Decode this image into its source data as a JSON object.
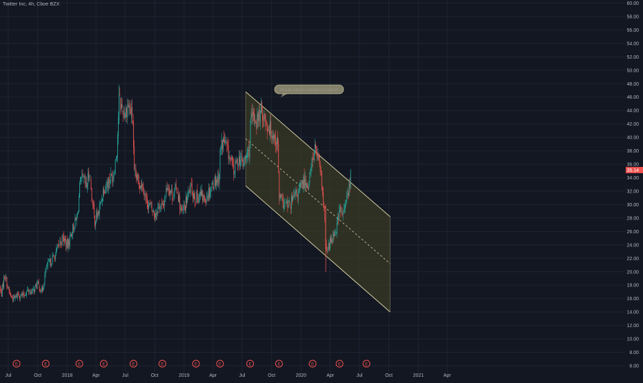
{
  "header": {
    "symbol_line": "Twitter Inc, 4h, Cboe BZX"
  },
  "annotation": {
    "text": "Break above parallel channel"
  },
  "colors": {
    "background": "#131722",
    "grid": "#1f2433",
    "text": "#b2b5be",
    "up": "#26a69a",
    "down": "#ef5350",
    "channel_fill": "#3a3a26",
    "channel_line": "#d8d3a2",
    "price_tag": "#ef5350",
    "earnings_marker": "#ef5350"
  },
  "chart_data": {
    "type": "candlestick",
    "title": "Twitter Inc, 4h, Cboe BZX",
    "y_ticks": [
      "60.00",
      "58.00",
      "56.00",
      "54.00",
      "52.00",
      "50.00",
      "48.00",
      "46.00",
      "44.00",
      "42.00",
      "40.00",
      "38.00",
      "36.00",
      "34.00",
      "32.00",
      "30.00",
      "28.00",
      "26.00",
      "24.00",
      "22.00",
      "20.00",
      "18.00",
      "16.00",
      "14.00",
      "12.00",
      "10.00",
      "8.00",
      "6.00"
    ],
    "ylim": [
      5,
      60.5
    ],
    "x_ticks": [
      "Jul",
      "Oct",
      "2018",
      "Apr",
      "Jul",
      "Oct",
      "2019",
      "Apr",
      "Jul",
      "Oct",
      "2020",
      "Apr",
      "Jul",
      "Oct",
      "2021",
      "Apr"
    ],
    "xlim": [
      "2017-06-01",
      "2021-06-15"
    ],
    "last_price": "35.14",
    "earnings_label": "E",
    "earnings_dates": [
      "2017-07-27",
      "2017-10-26",
      "2018-02-08",
      "2018-04-25",
      "2018-07-27",
      "2018-10-25",
      "2019-02-07",
      "2019-04-23",
      "2019-07-26",
      "2019-10-24",
      "2020-02-06",
      "2020-04-30",
      "2020-07-23"
    ],
    "price_path": [
      [
        "2017-06-01",
        17.8
      ],
      [
        "2017-06-10",
        16.8
      ],
      [
        "2017-06-20",
        19.8
      ],
      [
        "2017-06-30",
        17.5
      ],
      [
        "2017-07-10",
        16.2
      ],
      [
        "2017-07-20",
        16.0
      ],
      [
        "2017-07-31",
        16.7
      ],
      [
        "2017-08-15",
        16.4
      ],
      [
        "2017-08-31",
        17.2
      ],
      [
        "2017-09-15",
        17.0
      ],
      [
        "2017-09-30",
        18.2
      ],
      [
        "2017-10-15",
        17.0
      ],
      [
        "2017-10-27",
        20.5
      ],
      [
        "2017-11-10",
        21.5
      ],
      [
        "2017-11-25",
        22.5
      ],
      [
        "2017-12-10",
        24.5
      ],
      [
        "2017-12-20",
        25.0
      ],
      [
        "2018-01-02",
        23.8
      ],
      [
        "2018-01-15",
        26.0
      ],
      [
        "2018-02-01",
        28.0
      ],
      [
        "2018-02-10",
        33.0
      ],
      [
        "2018-02-20",
        33.8
      ],
      [
        "2018-03-01",
        32.5
      ],
      [
        "2018-03-12",
        35.0
      ],
      [
        "2018-03-20",
        30.5
      ],
      [
        "2018-03-28",
        27.5
      ],
      [
        "2018-04-10",
        29.0
      ],
      [
        "2018-04-25",
        32.5
      ],
      [
        "2018-05-10",
        33.5
      ],
      [
        "2018-05-25",
        34.5
      ],
      [
        "2018-06-05",
        38.0
      ],
      [
        "2018-06-12",
        45.5
      ],
      [
        "2018-06-20",
        44.5
      ],
      [
        "2018-07-01",
        43.5
      ],
      [
        "2018-07-10",
        45.0
      ],
      [
        "2018-07-26",
        42.5
      ],
      [
        "2018-07-28",
        34.5
      ],
      [
        "2018-08-10",
        33.5
      ],
      [
        "2018-08-25",
        33.0
      ],
      [
        "2018-09-05",
        30.5
      ],
      [
        "2018-09-20",
        29.5
      ],
      [
        "2018-10-01",
        28.5
      ],
      [
        "2018-10-15",
        30.0
      ],
      [
        "2018-10-26",
        29.5
      ],
      [
        "2018-11-10",
        33.0
      ],
      [
        "2018-11-25",
        31.5
      ],
      [
        "2018-12-10",
        32.5
      ],
      [
        "2018-12-24",
        28.5
      ],
      [
        "2019-01-05",
        30.0
      ],
      [
        "2019-01-20",
        32.5
      ],
      [
        "2019-02-07",
        31.0
      ],
      [
        "2019-02-20",
        31.5
      ],
      [
        "2019-03-05",
        30.8
      ],
      [
        "2019-03-20",
        32.0
      ],
      [
        "2019-04-05",
        33.5
      ],
      [
        "2019-04-20",
        34.0
      ],
      [
        "2019-04-24",
        38.5
      ],
      [
        "2019-05-05",
        39.5
      ],
      [
        "2019-05-20",
        37.5
      ],
      [
        "2019-06-05",
        35.0
      ],
      [
        "2019-06-20",
        37.0
      ],
      [
        "2019-07-05",
        36.0
      ],
      [
        "2019-07-25",
        38.5
      ],
      [
        "2019-07-27",
        42.0
      ],
      [
        "2019-08-05",
        43.0
      ],
      [
        "2019-08-15",
        42.5
      ],
      [
        "2019-09-01",
        44.0
      ],
      [
        "2019-09-15",
        42.0
      ],
      [
        "2019-10-01",
        41.0
      ],
      [
        "2019-10-20",
        39.0
      ],
      [
        "2019-10-25",
        31.0
      ],
      [
        "2019-11-10",
        30.0
      ],
      [
        "2019-11-25",
        29.8
      ],
      [
        "2019-12-10",
        31.0
      ],
      [
        "2019-12-25",
        32.0
      ],
      [
        "2020-01-10",
        33.5
      ],
      [
        "2020-01-25",
        33.0
      ],
      [
        "2020-02-06",
        37.0
      ],
      [
        "2020-02-15",
        38.5
      ],
      [
        "2020-02-25",
        36.0
      ],
      [
        "2020-03-05",
        33.5
      ],
      [
        "2020-03-15",
        27.5
      ],
      [
        "2020-03-19",
        22.5
      ],
      [
        "2020-03-25",
        23.5
      ],
      [
        "2020-04-05",
        25.0
      ],
      [
        "2020-04-20",
        26.5
      ],
      [
        "2020-04-30",
        29.5
      ],
      [
        "2020-05-05",
        28.5
      ],
      [
        "2020-05-15",
        29.0
      ],
      [
        "2020-05-25",
        31.5
      ],
      [
        "2020-06-01",
        33.0
      ],
      [
        "2020-06-05",
        35.14
      ]
    ],
    "channel": {
      "upper_start": [
        "2019-07-12",
        46.8
      ],
      "upper_end": [
        "2020-10-05",
        28.2
      ],
      "mid_start": [
        "2019-07-12",
        39.8
      ],
      "mid_end": [
        "2020-10-05",
        21.2
      ],
      "lower_start": [
        "2019-07-12",
        32.8
      ],
      "lower_end": [
        "2020-10-05",
        14.0
      ]
    }
  }
}
